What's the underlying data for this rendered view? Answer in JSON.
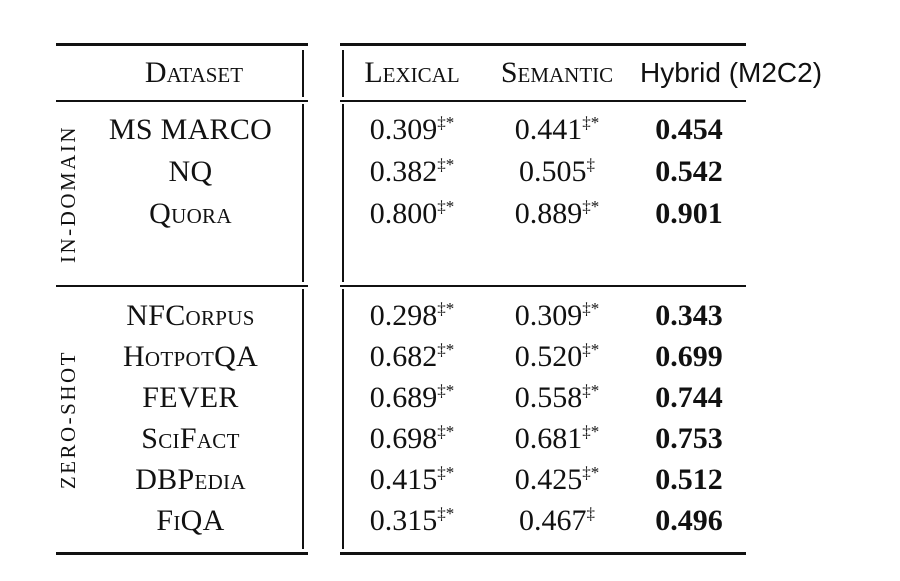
{
  "page": {
    "background": "#ffffff",
    "text_color": "#111111",
    "rule_color": "#111111"
  },
  "table": {
    "dataset_header": "Dataset",
    "columns": {
      "lexical": "Lexical",
      "semantic": "Semantic",
      "hybrid": "Hybrid (M2C2)"
    },
    "groups": [
      {
        "label": "IN-DOMAIN",
        "rows": [
          {
            "name": "MS MARCO",
            "lexical": "0.309",
            "lexical_sup": "‡*",
            "semantic": "0.441",
            "semantic_sup": "‡*",
            "hybrid": "0.454"
          },
          {
            "name": "NQ",
            "lexical": "0.382",
            "lexical_sup": "‡*",
            "semantic": "0.505",
            "semantic_sup": "‡",
            "hybrid": "0.542"
          },
          {
            "name": "Quora",
            "lexical": "0.800",
            "lexical_sup": "‡*",
            "semantic": "0.889",
            "semantic_sup": "‡*",
            "hybrid": "0.901"
          }
        ]
      },
      {
        "label": "ZERO-SHOT",
        "rows": [
          {
            "name": "NFCorpus",
            "lexical": "0.298",
            "lexical_sup": "‡*",
            "semantic": "0.309",
            "semantic_sup": "‡*",
            "hybrid": "0.343"
          },
          {
            "name": "HotpotQA",
            "lexical": "0.682",
            "lexical_sup": "‡*",
            "semantic": "0.520",
            "semantic_sup": "‡*",
            "hybrid": "0.699"
          },
          {
            "name": "FEVER",
            "lexical": "0.689",
            "lexical_sup": "‡*",
            "semantic": "0.558",
            "semantic_sup": "‡*",
            "hybrid": "0.744"
          },
          {
            "name": "SciFact",
            "lexical": "0.698",
            "lexical_sup": "‡*",
            "semantic": "0.681",
            "semantic_sup": "‡*",
            "hybrid": "0.753"
          },
          {
            "name": "DBPedia",
            "lexical": "0.415",
            "lexical_sup": "‡*",
            "semantic": "0.425",
            "semantic_sup": "‡*",
            "hybrid": "0.512"
          },
          {
            "name": "FiQA",
            "lexical": "0.315",
            "lexical_sup": "‡*",
            "semantic": "0.467",
            "semantic_sup": "‡",
            "hybrid": "0.496"
          }
        ]
      }
    ]
  }
}
